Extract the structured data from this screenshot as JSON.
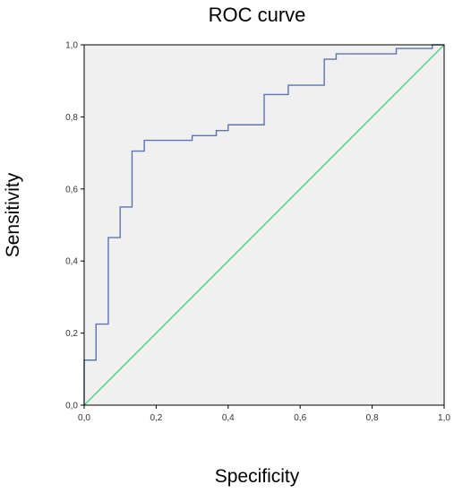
{
  "chart_data": {
    "type": "line",
    "title": "ROC curve",
    "xlabel": "Specificity",
    "ylabel": "Sensitivity",
    "xlim": [
      0,
      1
    ],
    "ylim": [
      0,
      1
    ],
    "x_ticks": [
      "0,0",
      "0,2",
      "0,4",
      "0,6",
      "0,8",
      "1,0"
    ],
    "y_ticks": [
      "0,0",
      "0,2",
      "0,4",
      "0,6",
      "0,8",
      "1,0"
    ],
    "grid": false,
    "background_color": "#f0f0f0",
    "series": [
      {
        "style": "step",
        "color": "#5d74b3",
        "x": [
          0.0,
          0.0,
          0.033,
          0.033,
          0.067,
          0.067,
          0.1,
          0.1,
          0.133,
          0.133,
          0.167,
          0.167,
          0.3,
          0.3,
          0.367,
          0.367,
          0.4,
          0.4,
          0.5,
          0.5,
          0.567,
          0.567,
          0.667,
          0.667,
          0.7,
          0.7,
          0.867,
          0.867,
          0.967,
          0.967,
          1.0
        ],
        "y": [
          0.0,
          0.125,
          0.125,
          0.225,
          0.225,
          0.465,
          0.465,
          0.55,
          0.55,
          0.705,
          0.705,
          0.735,
          0.735,
          0.748,
          0.748,
          0.762,
          0.762,
          0.778,
          0.778,
          0.862,
          0.862,
          0.888,
          0.888,
          0.96,
          0.96,
          0.975,
          0.975,
          0.99,
          0.99,
          1.0,
          1.0
        ]
      },
      {
        "style": "line",
        "color": "#2ecc71",
        "x": [
          0.0,
          1.0
        ],
        "y": [
          0.0,
          1.0
        ]
      }
    ]
  }
}
